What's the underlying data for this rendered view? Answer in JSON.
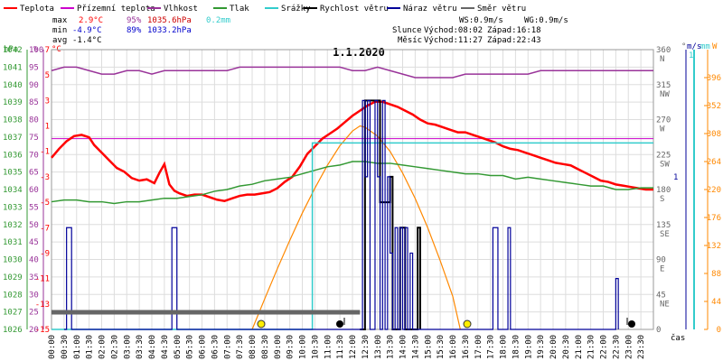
{
  "chart_data": {
    "type": "line",
    "title": "1.1.2020",
    "legend": [
      {
        "name": "Teplota",
        "color": "#ff0000"
      },
      {
        "name": "Přízemní teplota",
        "color": "#cc00cc"
      },
      {
        "name": "Vlhkost",
        "color": "#993399"
      },
      {
        "name": "Tlak",
        "color": "#339933"
      },
      {
        "name": "Srážky",
        "color": "#33cccc"
      },
      {
        "name": "Rychlost větru",
        "color": "#000000"
      },
      {
        "name": "Náraz větru",
        "color": "#000099"
      },
      {
        "name": "Směr větru",
        "color": "#666666"
      }
    ],
    "stats": {
      "max_label": "max",
      "max_temp": "2.9°C",
      "max_hum": "95%",
      "max_pres": "1035.6hPa",
      "max_rain": "0.2mm",
      "min_label": "min",
      "min_temp": "-4.9°C",
      "min_hum": "89%",
      "min_pres": "1033.2hPa",
      "avg_label": "avg",
      "avg_temp": "-1.4°C"
    },
    "wind": {
      "ws": "WS:0.9m/s",
      "wg": "WG:0.9m/s",
      "sun_label": "Slunce",
      "sunrise": "Východ:08:02",
      "sunset": "Západ:16:18",
      "moon_label": "Měsíc",
      "moonrise": "Východ:11:27",
      "moonset": "Západ:22:43"
    },
    "axis_units": {
      "pressure": "hPa",
      "humidity": "%",
      "temperature": "°C",
      "direction": "°",
      "wind_speed": "m/s",
      "rain": "mm",
      "solar": "W"
    },
    "axes": {
      "pressure_ticks": [
        "1042",
        "1041",
        "1040",
        "1039",
        "1038",
        "1037",
        "1036",
        "1035",
        "1034",
        "1033",
        "1032",
        "1031",
        "1030",
        "1029",
        "1028",
        "1027",
        "1026"
      ],
      "humidity_ticks": [
        "100",
        "95",
        "90",
        "85",
        "80",
        "75",
        "70",
        "65",
        "60",
        "55",
        "50",
        "45",
        "40",
        "35",
        "30",
        "25",
        "20"
      ],
      "temperature_ticks": [
        "7",
        "5",
        "3",
        "1",
        "-1",
        "-3",
        "-5",
        "-7",
        "-9",
        "-11",
        "-13",
        "-15"
      ],
      "direction_ticks": [
        {
          "deg": "360",
          "dir": "N"
        },
        {
          "deg": "315",
          "dir": "NW"
        },
        {
          "deg": "270",
          "dir": "W"
        },
        {
          "deg": "225",
          "dir": "SW"
        },
        {
          "deg": "180",
          "dir": "S"
        },
        {
          "deg": "135",
          "dir": "SE"
        },
        {
          "deg": "90",
          "dir": "E"
        },
        {
          "deg": "45",
          "dir": "NE"
        },
        {
          "deg": "0",
          "dir": ""
        }
      ],
      "wind_ticks": [
        "1"
      ],
      "rain_ticks": [
        "1"
      ],
      "solar_ticks": [
        "396",
        "352",
        "308",
        "264",
        "220",
        "176",
        "132",
        "88",
        "44",
        "0"
      ],
      "x_ticks": [
        "00:00",
        "00:30",
        "01:00",
        "01:30",
        "02:00",
        "02:30",
        "03:00",
        "03:30",
        "04:00",
        "04:30",
        "05:00",
        "05:30",
        "06:00",
        "06:30",
        "07:00",
        "07:30",
        "08:00",
        "08:30",
        "09:00",
        "09:30",
        "10:00",
        "10:30",
        "11:00",
        "11:30",
        "12:00",
        "12:30",
        "13:00",
        "13:30",
        "14:00",
        "14:30",
        "15:00",
        "15:30",
        "16:00",
        "16:30",
        "17:00",
        "17:30",
        "18:00",
        "18:30",
        "19:00",
        "19:30",
        "20:00",
        "20:30",
        "21:00",
        "21:30",
        "22:00",
        "22:30",
        "23:00",
        "23:30"
      ],
      "x_label": "čas"
    },
    "series": [
      {
        "name": "Teplota",
        "color": "#ff0000",
        "axis": "temperature",
        "x": [
          0,
          0.3,
          0.6,
          0.9,
          1.2,
          1.5,
          1.7,
          2.0,
          2.3,
          2.6,
          2.9,
          3.2,
          3.5,
          3.8,
          4.1,
          4.3,
          4.5,
          4.7,
          4.9,
          5.1,
          5.4,
          5.7,
          6.0,
          6.3,
          6.6,
          6.9,
          7.2,
          7.5,
          7.8,
          8.1,
          8.4,
          8.7,
          9.0,
          9.3,
          9.6,
          9.9,
          10.2,
          10.5,
          10.8,
          11.1,
          11.4,
          11.7,
          12.0,
          12.3,
          12.6,
          12.9,
          13.2,
          13.5,
          13.8,
          14.1,
          14.4,
          14.7,
          15.0,
          15.3,
          15.6,
          15.9,
          16.2,
          16.5,
          16.8,
          17.1,
          17.4,
          17.7,
          18.0,
          18.3,
          18.6,
          18.9,
          19.2,
          19.5,
          19.8,
          20.1,
          20.4,
          20.7,
          21.0,
          21.3,
          21.6,
          21.9,
          22.2,
          22.5,
          22.8,
          23.1,
          23.4,
          23.7,
          24.0
        ],
        "y": [
          -1.5,
          -0.8,
          -0.2,
          0.2,
          0.3,
          0.1,
          -0.5,
          -1.1,
          -1.7,
          -2.3,
          -2.6,
          -3.1,
          -3.3,
          -3.2,
          -3.5,
          -2.7,
          -2.0,
          -3.6,
          -4.1,
          -4.3,
          -4.5,
          -4.4,
          -4.4,
          -4.6,
          -4.8,
          -4.9,
          -4.7,
          -4.5,
          -4.4,
          -4.4,
          -4.3,
          -4.2,
          -3.9,
          -3.4,
          -3.0,
          -2.2,
          -1.2,
          -0.6,
          0.0,
          0.4,
          0.8,
          1.3,
          1.8,
          2.2,
          2.6,
          2.9,
          2.9,
          2.7,
          2.5,
          2.2,
          1.9,
          1.5,
          1.2,
          1.1,
          0.9,
          0.7,
          0.5,
          0.5,
          0.3,
          0.1,
          -0.1,
          -0.3,
          -0.6,
          -0.8,
          -0.9,
          -1.1,
          -1.3,
          -1.5,
          -1.7,
          -1.9,
          -2.0,
          -2.1,
          -2.4,
          -2.7,
          -3.0,
          -3.3,
          -3.4,
          -3.6,
          -3.7,
          -3.8,
          -3.9,
          -4.0,
          -4.0
        ]
      },
      {
        "name": "Vlhkost",
        "color": "#993399",
        "axis": "humidity",
        "x": [
          0,
          0.5,
          1.0,
          1.5,
          2.0,
          2.5,
          3.0,
          3.5,
          4.0,
          4.5,
          5.0,
          5.5,
          6.0,
          6.5,
          7.0,
          7.5,
          8.0,
          8.5,
          9.0,
          9.5,
          10.0,
          10.5,
          11.0,
          11.5,
          12.0,
          12.5,
          13.0,
          13.5,
          14.0,
          14.5,
          15.0,
          15.5,
          16.0,
          16.5,
          17.0,
          17.5,
          18.0,
          18.5,
          19.0,
          19.5,
          20.0,
          20.5,
          21.0,
          21.5,
          22.0,
          22.5,
          23.0,
          23.5,
          24.0
        ],
        "y": [
          94,
          95,
          95,
          94,
          93,
          93,
          94,
          94,
          93,
          94,
          94,
          94,
          94,
          94,
          94,
          95,
          95,
          95,
          95,
          95,
          95,
          95,
          95,
          95,
          94,
          94,
          95,
          94,
          93,
          92,
          92,
          92,
          92,
          93,
          93,
          93,
          93,
          93,
          93,
          94,
          94,
          94,
          94,
          94,
          94,
          94,
          94,
          94,
          94
        ]
      },
      {
        "name": "Tlak",
        "color": "#339933",
        "axis": "pressure",
        "x": [
          0,
          0.5,
          1.0,
          1.5,
          2.0,
          2.5,
          3.0,
          3.5,
          4.0,
          4.5,
          5.0,
          5.5,
          6.0,
          6.5,
          7.0,
          7.5,
          8.0,
          8.5,
          9.0,
          9.5,
          10.0,
          10.5,
          11.0,
          11.5,
          12.0,
          12.5,
          13.0,
          13.5,
          14.0,
          14.5,
          15.0,
          15.5,
          16.0,
          16.5,
          17.0,
          17.5,
          18.0,
          18.5,
          19.0,
          19.5,
          20.0,
          20.5,
          21.0,
          21.5,
          22.0,
          22.5,
          23.0,
          23.5,
          24.0
        ],
        "y": [
          1033.3,
          1033.4,
          1033.4,
          1033.3,
          1033.3,
          1033.2,
          1033.3,
          1033.3,
          1033.4,
          1033.5,
          1033.5,
          1033.6,
          1033.7,
          1033.9,
          1034.0,
          1034.2,
          1034.3,
          1034.5,
          1034.6,
          1034.7,
          1034.9,
          1035.1,
          1035.3,
          1035.4,
          1035.6,
          1035.6,
          1035.5,
          1035.5,
          1035.4,
          1035.3,
          1035.2,
          1035.1,
          1035.0,
          1034.9,
          1034.9,
          1034.8,
          1034.8,
          1034.6,
          1034.7,
          1034.6,
          1034.5,
          1034.4,
          1034.3,
          1034.2,
          1034.2,
          1034.0,
          1034.0,
          1034.1,
          1034.1
        ]
      },
      {
        "name": "Srážky",
        "color": "#33cccc",
        "axis": "rain",
        "x": [
          0,
          10.4,
          10.4,
          24.0
        ],
        "y": [
          0,
          0,
          0.2,
          0.2
        ]
      },
      {
        "name": "Rychlost větru",
        "color": "#000000",
        "axis": "wind_speed",
        "x": [
          12.3,
          12.5,
          12.8,
          13.0,
          13.1,
          13.3,
          13.4,
          13.5,
          13.6,
          13.8,
          13.9,
          14.1,
          14.2,
          14.4,
          14.6,
          14.7
        ],
        "y": [
          0.0,
          0.9,
          0.9,
          0.9,
          0.5,
          0.5,
          0.5,
          0.6,
          0.0,
          0.0,
          0.4,
          0.0,
          0.0,
          0.0,
          0.4,
          0.0
        ]
      },
      {
        "name": "Náraz větru",
        "color": "#000099",
        "axis": "wind_speed",
        "x": [
          0.5,
          0.6,
          0.7,
          0.8,
          4.7,
          4.8,
          4.9,
          5.0,
          12.3,
          12.4,
          12.5,
          12.6,
          12.7,
          12.8,
          12.9,
          13.0,
          13.1,
          13.2,
          13.3,
          13.4,
          13.5,
          13.6,
          13.7,
          13.8,
          13.9,
          14.0,
          14.1,
          14.2,
          14.3,
          14.4,
          17.5,
          17.6,
          17.7,
          17.8,
          18.1,
          18.2,
          18.3,
          22.4,
          22.5,
          22.6
        ],
        "y": [
          0,
          0.4,
          0.4,
          0,
          0,
          0.4,
          0.4,
          0,
          0,
          0.9,
          0.6,
          0.9,
          0,
          0,
          0.9,
          0.6,
          0,
          0.9,
          0,
          0.6,
          0.3,
          0,
          0.4,
          0,
          0.4,
          0,
          0.4,
          0,
          0.3,
          0,
          0,
          0.4,
          0.4,
          0,
          0,
          0.4,
          0,
          0,
          0.2,
          0
        ]
      },
      {
        "name": "Směr větru",
        "color": "#666666",
        "axis": "direction",
        "x": [
          0,
          12.3
        ],
        "y": [
          22,
          22
        ]
      }
    ],
    "solar": {
      "name": "Solar",
      "color": "#ff8800",
      "axis": "solar",
      "x": [
        8.0,
        8.5,
        9.0,
        9.5,
        10.0,
        10.5,
        11.0,
        11.5,
        12.0,
        12.3,
        12.5,
        13.0,
        13.5,
        14.0,
        14.5,
        15.0,
        15.5,
        16.0,
        16.3
      ],
      "y": [
        0,
        48,
        95,
        140,
        183,
        222,
        258,
        289,
        312,
        320,
        318,
        304,
        280,
        246,
        206,
        160,
        108,
        52,
        0
      ]
    },
    "xlim": [
      0,
      24
    ],
    "ylim_temperature": [
      -15,
      7
    ],
    "ylim_humidity": [
      20,
      100
    ],
    "ylim_pressure": [
      1026,
      1042
    ],
    "ylim_direction": [
      0,
      360
    ],
    "ylim_wind_speed": [
      0,
      1.1
    ],
    "ylim_rain": [
      0,
      0.3
    ],
    "ylim_solar": [
      0,
      440
    ],
    "grid": true,
    "legend_position": "top"
  }
}
